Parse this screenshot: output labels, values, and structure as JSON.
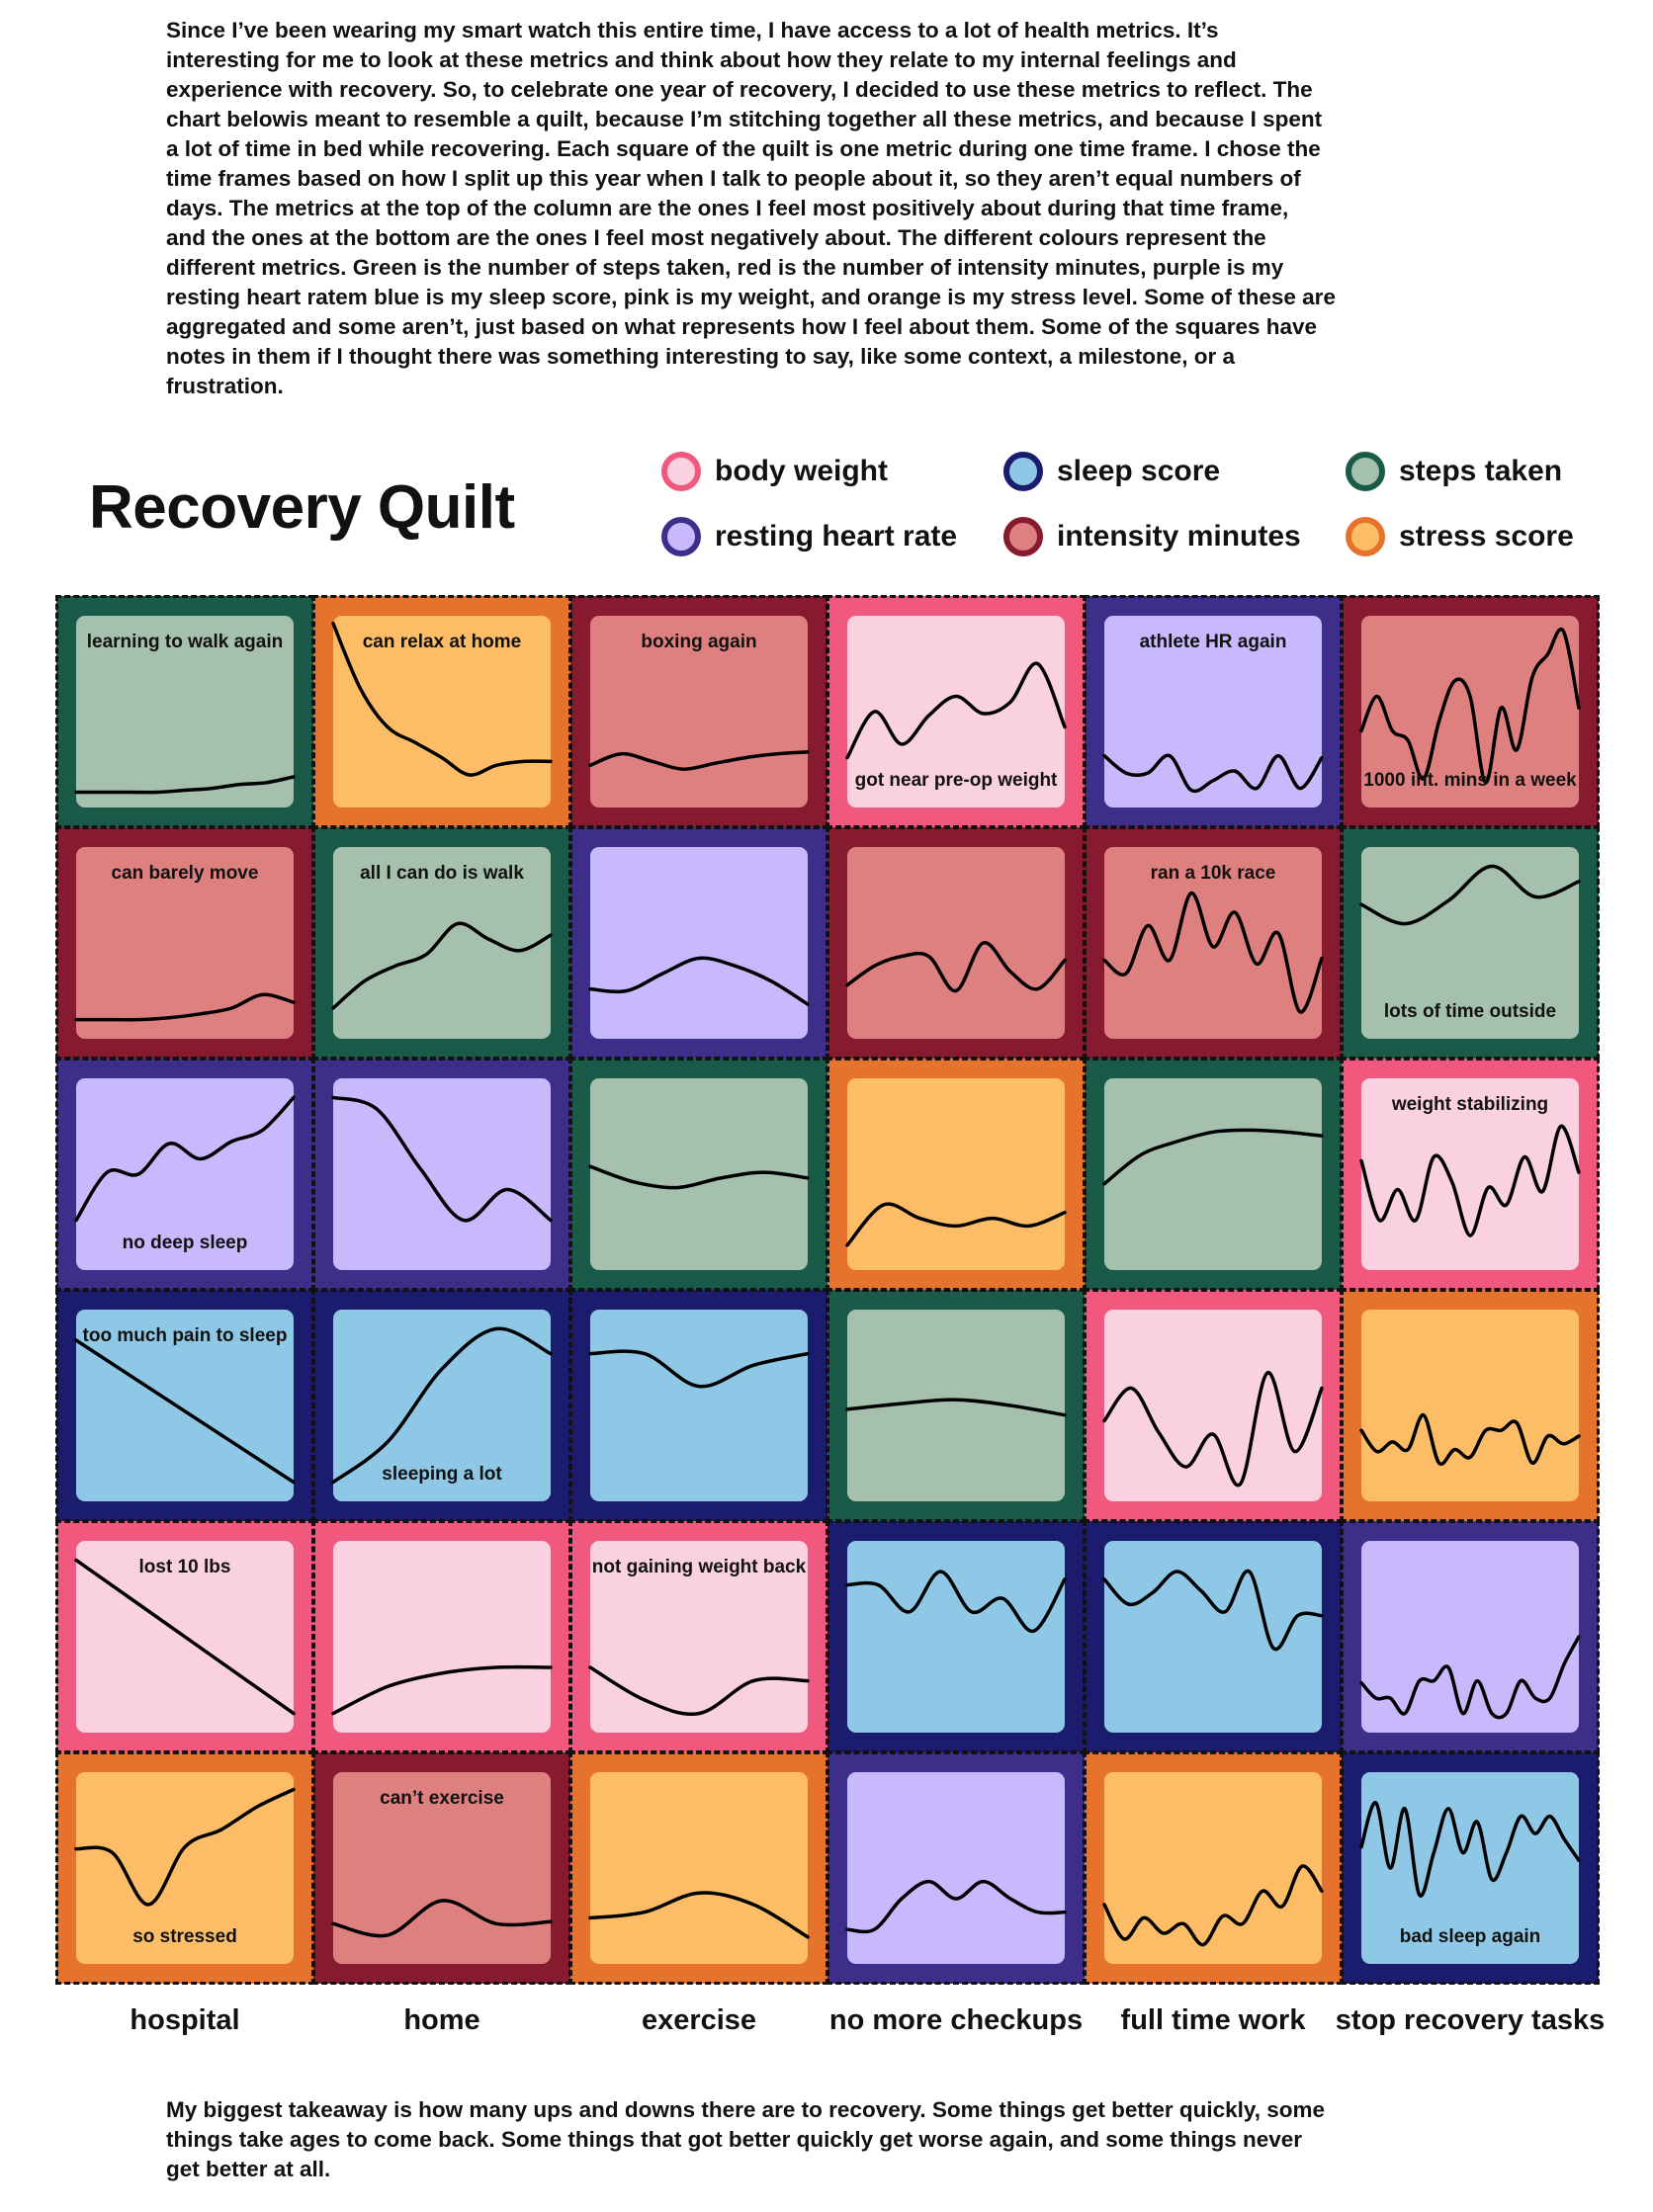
{
  "intro_lines": [
    "Since I’ve been wearing my smart watch this entire time, I have access to a lot of health metrics. It’s",
    "interesting for me to look at these metrics and think about how they relate to my internal feelings and",
    "experience with recovery. So, to celebrate one year of recovery, I decided to use these metrics to reflect. The",
    "chart belowis meant to resemble a quilt, because I’m stitching together all these metrics, and because I spent",
    "a lot of time in bed while recovering. Each square of the quilt is one metric during one time frame. I chose the",
    "time frames based on how I split up this year when I talk to people about it, so they aren’t equal numbers of",
    "days. The metrics at the top of the column are the ones I feel most positively about during that time frame,",
    "and the ones at the bottom are the ones I feel most negatively about. The different colours represent the",
    "different metrics. Green is the number of steps taken, red is the number of intensity minutes, purple is my",
    "resting heart ratem blue is my sleep score, pink is my weight, and orange is my stress level. Some of these are",
    "aggregated and some aren’t, just based on what represents how I feel about them. Some of the squares have",
    "notes in them if I thought there was something interesting to say, like some context, a milestone, or a",
    "frustration."
  ],
  "outro_lines": [
    "My biggest takeaway is how many ups and downs there are to recovery. Some things get better quickly, some",
    "things take ages to come back. Some things that got better quickly get worse again, and some things never",
    "get better at all."
  ],
  "chart_data": {
    "type": "line",
    "title": "Recovery Quilt",
    "value_scale": "each square normalized 0-100 (bottom to top of square)",
    "legend": [
      {
        "key": "weight",
        "label": "body weight",
        "outer": "#f0587d",
        "inner": "#f9d1e1"
      },
      {
        "key": "sleep",
        "label": "sleep score",
        "outer": "#1c1c6e",
        "inner": "#8ec8e6"
      },
      {
        "key": "steps",
        "label": "steps taken",
        "outer": "#1a5a48",
        "inner": "#a5c0ad"
      },
      {
        "key": "rhr",
        "label": "resting heart rate",
        "outer": "#3d2e8a",
        "inner": "#c8b8fc"
      },
      {
        "key": "intensity",
        "label": "intensity minutes",
        "outer": "#861a2e",
        "inner": "#df8080"
      },
      {
        "key": "stress",
        "label": "stress score",
        "outer": "#e5732d",
        "inner": "#fdbd67"
      }
    ],
    "columns": [
      "hospital",
      "home",
      "exercise",
      "no more checkups",
      "full time work",
      "stop recovery tasks"
    ],
    "rows": [
      [
        {
          "metric": "steps",
          "note": "learning to walk again",
          "note_pos": "top",
          "values": [
            8,
            8,
            8,
            8,
            9,
            10,
            12,
            13,
            16
          ]
        },
        {
          "metric": "stress",
          "note": "can relax at home",
          "note_pos": "top",
          "values": [
            96,
            62,
            42,
            34,
            26,
            17,
            22,
            24,
            24
          ]
        },
        {
          "metric": "intensity",
          "note": "boxing again",
          "note_pos": "top",
          "values": [
            22,
            28,
            24,
            20,
            23,
            26,
            28,
            29
          ]
        },
        {
          "metric": "weight",
          "note": "got near pre-op weight",
          "note_pos": "bottom",
          "values": [
            26,
            50,
            33,
            48,
            58,
            49,
            55,
            75,
            42
          ]
        },
        {
          "metric": "rhr",
          "note": "athlete HR again",
          "note_pos": "top",
          "values": [
            27,
            18,
            18,
            27,
            9,
            14,
            19,
            10,
            27,
            10,
            26
          ]
        },
        {
          "metric": "intensity",
          "note": "1000 int. mins in a week",
          "note_pos": "bottom",
          "values": [
            40,
            58,
            40,
            35,
            15,
            45,
            66,
            58,
            13,
            52,
            30,
            68,
            80,
            92,
            52
          ]
        }
      ],
      [
        {
          "metric": "intensity",
          "note": "can barely move",
          "note_pos": "top",
          "values": [
            10,
            10,
            10,
            11,
            13,
            16,
            23,
            19
          ]
        },
        {
          "metric": "steps",
          "note": "all I can do is walk",
          "note_pos": "top",
          "values": [
            16,
            30,
            38,
            44,
            60,
            52,
            46,
            54
          ]
        },
        {
          "metric": "rhr",
          "note": "",
          "note_pos": "",
          "values": [
            26,
            25,
            34,
            42,
            38,
            30,
            18
          ]
        },
        {
          "metric": "intensity",
          "note": "",
          "note_pos": "",
          "values": [
            28,
            38,
            43,
            43,
            25,
            50,
            35,
            26,
            41
          ]
        },
        {
          "metric": "intensity",
          "note": "ran a 10k race",
          "note_pos": "top",
          "values": [
            41,
            34,
            59,
            41,
            76,
            48,
            66,
            39,
            55,
            14,
            42
          ]
        },
        {
          "metric": "steps",
          "note": "lots of time outside",
          "note_pos": "bottom",
          "values": [
            70,
            60,
            72,
            90,
            74,
            82
          ]
        }
      ],
      [
        {
          "metric": "rhr",
          "note": "no deep sleep",
          "note_pos": "bottom",
          "values": [
            26,
            51,
            50,
            66,
            58,
            67,
            73,
            90
          ]
        },
        {
          "metric": "rhr",
          "note": "",
          "note_pos": "",
          "values": [
            90,
            84,
            53,
            26,
            42,
            26
          ]
        },
        {
          "metric": "steps",
          "note": "",
          "note_pos": "",
          "values": [
            54,
            46,
            43,
            48,
            51,
            48
          ]
        },
        {
          "metric": "stress",
          "note": "",
          "note_pos": "",
          "values": [
            13,
            34,
            27,
            23,
            27,
            23,
            30
          ]
        },
        {
          "metric": "steps",
          "note": "",
          "note_pos": "",
          "values": [
            45,
            60,
            67,
            72,
            73,
            72,
            70
          ]
        },
        {
          "metric": "weight",
          "note": "weight stabilizing",
          "note_pos": "top",
          "values": [
            57,
            26,
            42,
            26,
            59,
            46,
            18,
            43,
            34,
            59,
            41,
            75,
            51
          ]
        }
      ],
      [
        {
          "metric": "sleep",
          "note": "too much pain to sleep",
          "note_pos": "top",
          "values": [
            84,
            10
          ]
        },
        {
          "metric": "sleep",
          "note": "sleeping a lot",
          "note_pos": "bottom",
          "values": [
            10,
            31,
            69,
            90,
            77
          ]
        },
        {
          "metric": "sleep",
          "note": "",
          "note_pos": "",
          "values": [
            77,
            77,
            60,
            71,
            77
          ]
        },
        {
          "metric": "steps",
          "note": "",
          "note_pos": "",
          "values": [
            48,
            51,
            53,
            50,
            45
          ]
        },
        {
          "metric": "weight",
          "note": "",
          "note_pos": "",
          "values": [
            42,
            59,
            36,
            18,
            35,
            9,
            67,
            26,
            59
          ]
        },
        {
          "metric": "stress",
          "note": "",
          "note_pos": "",
          "values": [
            37,
            26,
            31,
            27,
            45,
            20,
            27,
            23,
            37,
            37,
            41,
            20,
            34,
            30,
            34
          ]
        }
      ],
      [
        {
          "metric": "weight",
          "note": "lost 10 lbs",
          "note_pos": "top",
          "values": [
            90,
            10
          ]
        },
        {
          "metric": "weight",
          "note": "",
          "note_pos": "",
          "values": [
            10,
            24,
            31,
            34,
            34
          ]
        },
        {
          "metric": "weight",
          "note": "not gaining weight back",
          "note_pos": "top",
          "values": [
            34,
            17,
            10,
            27,
            27
          ]
        },
        {
          "metric": "sleep",
          "note": "",
          "note_pos": "",
          "values": [
            77,
            77,
            63,
            84,
            63,
            70,
            53,
            80
          ]
        },
        {
          "metric": "sleep",
          "note": "",
          "note_pos": "",
          "values": [
            80,
            67,
            73,
            84,
            74,
            63,
            84,
            44,
            61,
            61
          ]
        },
        {
          "metric": "rhr",
          "note": "",
          "note_pos": "",
          "values": [
            26,
            18,
            18,
            10,
            27,
            27,
            34,
            10,
            27,
            10,
            10,
            27,
            18,
            18,
            36,
            50
          ]
        }
      ],
      [
        {
          "metric": "stress",
          "note": "so stressed",
          "note_pos": "bottom",
          "values": [
            60,
            58,
            31,
            61,
            70,
            82,
            91
          ]
        },
        {
          "metric": "intensity",
          "note": "can’t exercise",
          "note_pos": "top",
          "values": [
            21,
            15,
            33,
            21,
            22
          ]
        },
        {
          "metric": "stress",
          "note": "",
          "note_pos": "",
          "values": [
            24,
            27,
            37,
            31,
            14
          ]
        },
        {
          "metric": "rhr",
          "note": "",
          "note_pos": "",
          "values": [
            18,
            18,
            34,
            43,
            34,
            43,
            34,
            27,
            27
          ]
        },
        {
          "metric": "stress",
          "note": "",
          "note_pos": "",
          "values": [
            31,
            13,
            24,
            16,
            21,
            10,
            25,
            21,
            38,
            30,
            51,
            38
          ]
        },
        {
          "metric": "sleep",
          "note": "bad sleep again",
          "note_pos": "bottom",
          "values": [
            61,
            84,
            50,
            81,
            36,
            58,
            81,
            58,
            74,
            44,
            58,
            77,
            68,
            77,
            65,
            54
          ]
        }
      ]
    ]
  }
}
